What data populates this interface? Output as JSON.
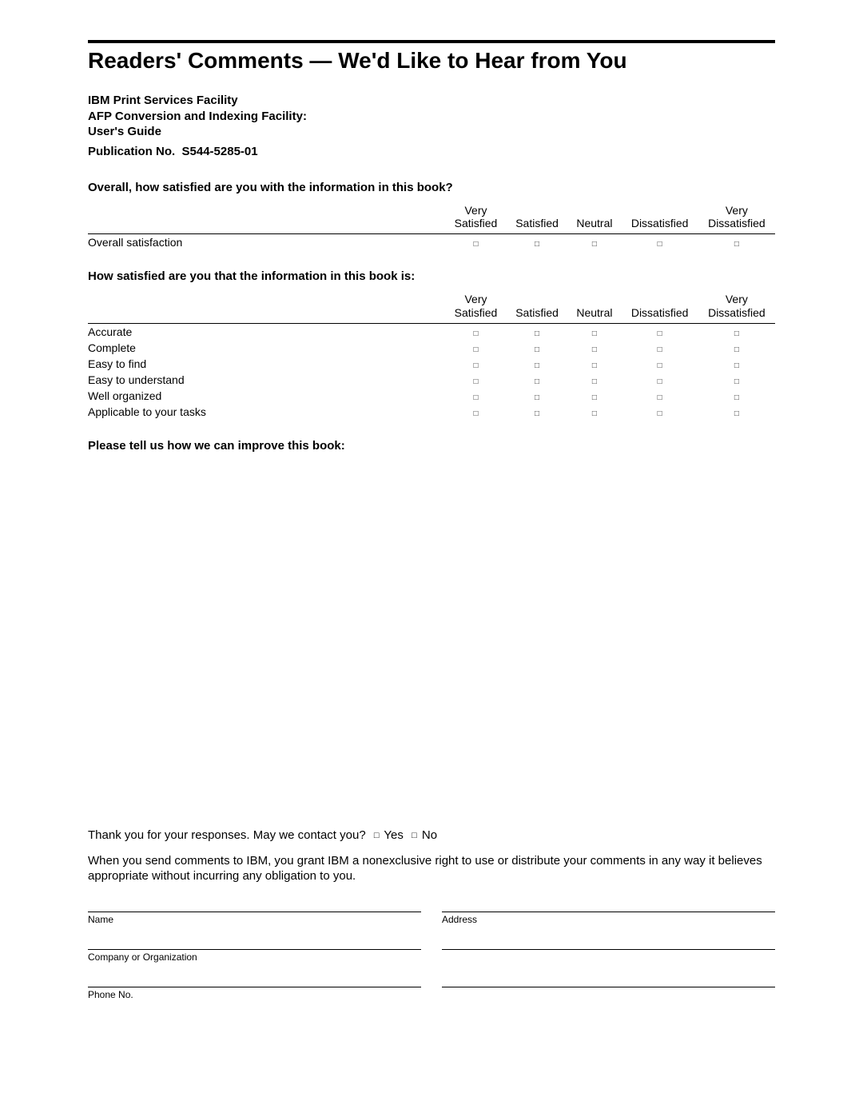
{
  "colors": {
    "text": "#000000",
    "background": "#ffffff",
    "rule": "#000000"
  },
  "typography": {
    "font_family": "Arial, Helvetica, sans-serif",
    "title_fontsize": 28,
    "heading_fontsize": 15,
    "body_fontsize": 15,
    "table_fontsize": 14,
    "field_label_fontsize": 12
  },
  "title": "Readers' Comments — We'd Like to Hear from You",
  "pub_info": {
    "line1": "IBM Print Services Facility",
    "line2": "AFP Conversion and Indexing Facility:",
    "line3": "User's Guide",
    "pub_no_label": "Publication No.",
    "pub_no_value": "S544-5285-01"
  },
  "scale_headers": {
    "very_satisfied": "Very Satisfied",
    "satisfied": "Satisfied",
    "neutral": "Neutral",
    "dissatisfied": "Dissatisfied",
    "very_dissatisfied": "Very Dissatisfied"
  },
  "q1": {
    "heading": "Overall, how satisfied are you with the information in this book?",
    "rows": [
      "Overall satisfaction"
    ]
  },
  "q2": {
    "heading": "How satisfied are you that the information in this book is:",
    "rows": [
      "Accurate",
      "Complete",
      "Easy to find",
      "Easy to understand",
      "Well organized",
      "Applicable to your tasks"
    ]
  },
  "q3_heading": "Please tell us how we can improve this book:",
  "thank_you": {
    "prefix": "Thank you for your responses.  May we contact you?",
    "yes": "Yes",
    "no": "No"
  },
  "legal": "When you send comments to IBM, you grant IBM a nonexclusive right to use or distribute your comments in any way it believes appropriate without incurring any obligation to you.",
  "fields": {
    "name": "Name",
    "address": "Address",
    "company": "Company or Organization",
    "phone": "Phone No."
  },
  "checkbox_glyph": "□"
}
